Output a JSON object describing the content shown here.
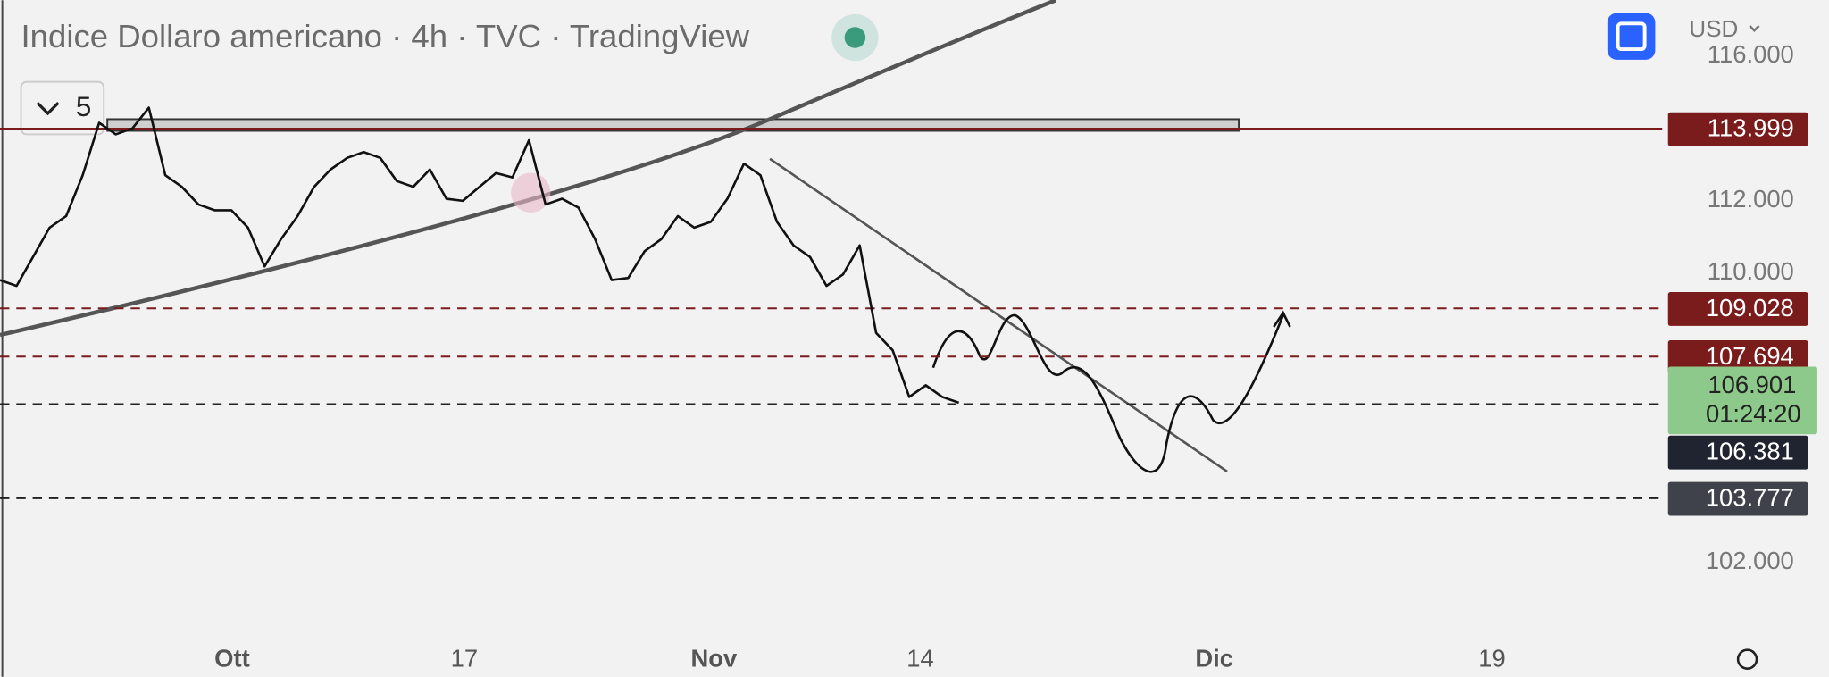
{
  "chart_data": {
    "type": "line",
    "title": "Indice Dollaro americano · 4h · TVC · TradingView",
    "interval_count": "5",
    "currency": "USD",
    "ylim": [
      100.13,
      117.55
    ],
    "yticks": [
      {
        "value": 116,
        "label": "116.000"
      },
      {
        "value": 112,
        "label": "112.000"
      },
      {
        "value": 110,
        "label": "110.000"
      },
      {
        "value": 102,
        "label": "102.000"
      }
    ],
    "x_labels": [
      "Ott",
      "17",
      "Nov",
      "14",
      "Dic",
      "19"
    ],
    "series": [
      {
        "color": "#111111",
        "values": [
          109.81,
          109.65,
          110.45,
          111.26,
          111.58,
          112.71,
          114.16,
          113.84,
          114.0,
          114.58,
          112.71,
          112.39,
          111.9,
          111.74,
          111.74,
          111.26,
          110.19,
          110.94,
          111.58,
          112.39,
          112.87,
          113.19,
          113.35,
          113.19,
          112.55,
          112.39,
          112.87,
          112.06,
          112.0,
          112.39,
          112.77,
          112.65,
          113.68,
          111.9,
          112.06,
          111.81,
          110.94,
          109.81,
          109.87,
          110.61,
          110.94,
          111.58,
          111.26,
          111.42,
          112.06,
          113.03,
          112.71,
          111.42,
          110.77,
          110.45,
          109.65,
          109.97,
          110.77,
          108.35,
          107.87,
          106.58,
          106.9,
          106.58,
          106.42
        ]
      }
    ],
    "levels": [
      {
        "value": 113.999,
        "color": "#7a1c1c",
        "label_color": "#7a1c1c",
        "dashed": false
      },
      {
        "value": 109.028,
        "color": "#7a1c1c",
        "label_color": "#7a1c1c",
        "dashed": true
      },
      {
        "value": 107.694,
        "color": "#7a1c1c",
        "label_color": "#7a1c1c",
        "dashed": true
      },
      {
        "value": 106.381,
        "color": "#222222",
        "label_color": "#1f2430",
        "dashed": true
      },
      {
        "value": 103.777,
        "color": "#222222",
        "label_color": "#3f424a",
        "dashed": true
      }
    ],
    "last_price": {
      "value": 106.901,
      "countdown": "01:24:20",
      "color": "#8dc98a"
    }
  }
}
